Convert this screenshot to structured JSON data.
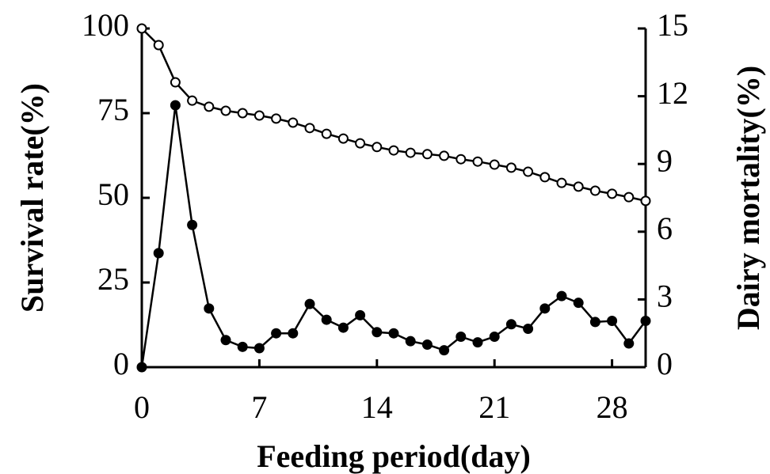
{
  "chart_data": {
    "type": "line",
    "xlabel": "Feeding period(day)",
    "ylabel": "Survival rate(%)",
    "y2label": "Dairy mortality(%)",
    "x": [
      0,
      1,
      2,
      3,
      4,
      5,
      6,
      7,
      8,
      9,
      10,
      11,
      12,
      13,
      14,
      15,
      16,
      17,
      18,
      19,
      20,
      21,
      22,
      23,
      24,
      25,
      26,
      27,
      28,
      29,
      30
    ],
    "xlim": [
      0,
      30
    ],
    "xticks": [
      0,
      7,
      14,
      21,
      28
    ],
    "ylim": [
      0,
      100
    ],
    "yticks": [
      0,
      25,
      50,
      75,
      100
    ],
    "y2lim": [
      0,
      15
    ],
    "y2ticks": [
      0,
      3,
      6,
      9,
      12,
      15
    ],
    "series": [
      {
        "name": "Survival rate",
        "axis": "y",
        "color": "#000000",
        "marker_fill": "#ffffff",
        "values": [
          100,
          95.1,
          84.1,
          78.7,
          76.9,
          75.7,
          75.0,
          74.3,
          73.4,
          72.2,
          70.6,
          68.9,
          67.5,
          66.1,
          65.0,
          64.0,
          63.3,
          62.9,
          62.4,
          61.4,
          60.7,
          59.8,
          58.9,
          57.7,
          56.1,
          54.4,
          53.3,
          52.1,
          51.2,
          50.2,
          49.1
        ]
      },
      {
        "name": "Dairy mortality",
        "axis": "y2",
        "color": "#000000",
        "marker_fill": "#000000",
        "values": [
          0,
          5.05,
          11.6,
          6.3,
          2.6,
          1.2,
          0.9,
          0.84,
          1.5,
          1.5,
          2.8,
          2.1,
          1.75,
          2.3,
          1.55,
          1.5,
          1.15,
          1.0,
          0.75,
          1.35,
          1.1,
          1.35,
          1.9,
          1.7,
          2.6,
          3.15,
          2.85,
          2.0,
          2.05,
          1.05,
          2.05
        ]
      }
    ]
  }
}
